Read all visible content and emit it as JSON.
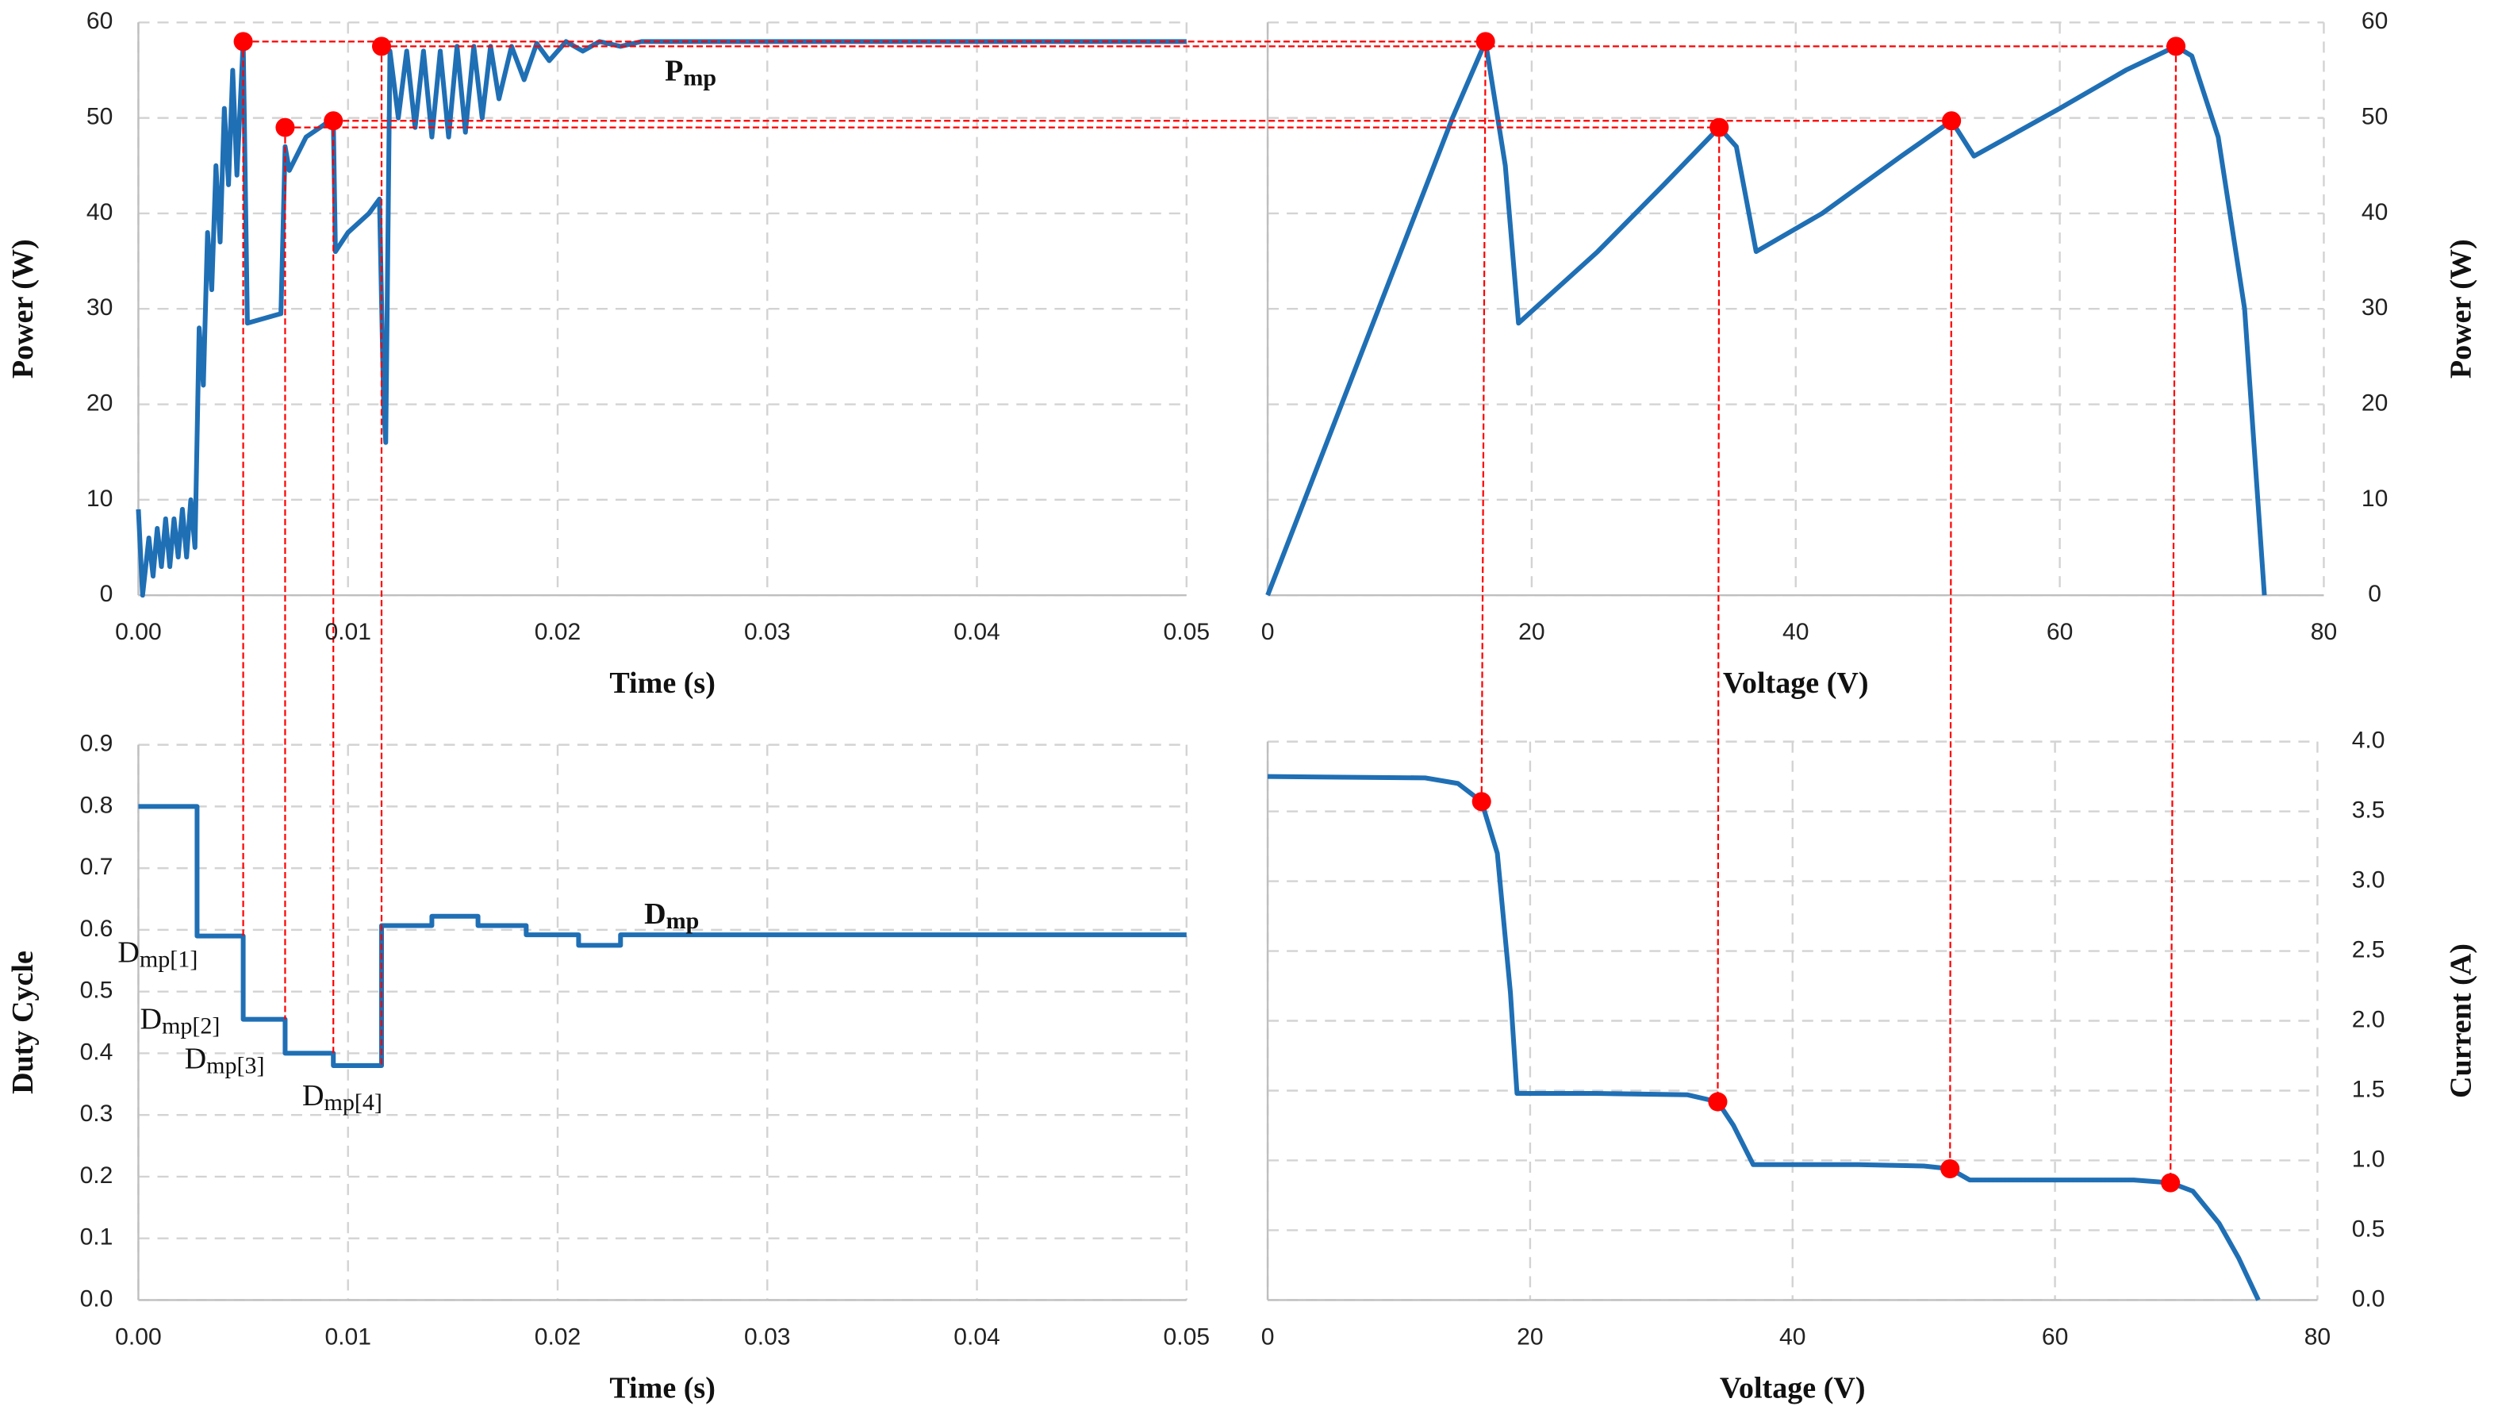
{
  "chart_data": [
    {
      "type": "line",
      "x_label": "Time (s)",
      "y_label": "Power (W)",
      "y_axis_position": "left",
      "grid": true,
      "xlim": [
        0,
        0.05
      ],
      "ylim": [
        0,
        60
      ],
      "xticks": [
        {
          "value": 0,
          "label": "0.00"
        },
        0.01,
        0.02,
        0.03,
        0.04,
        0.05
      ],
      "yticks": [
        0,
        10,
        20,
        30,
        40,
        50,
        60
      ],
      "x": [
        0,
        0.0002,
        0.0005,
        0.0007,
        0.0009,
        0.0011,
        0.0013,
        0.0015,
        0.0017,
        0.0019,
        0.0021,
        0.0023,
        0.0025,
        0.0027,
        0.0029,
        0.0031,
        0.0033,
        0.0035,
        0.0037,
        0.0039,
        0.0041,
        0.0043,
        0.0045,
        0.0047,
        0.005,
        0.0052,
        0.006,
        0.0068,
        0.007,
        0.0072,
        0.008,
        0.009,
        0.0093,
        0.0094,
        0.01,
        0.011,
        0.0115,
        0.0117,
        0.0118,
        0.012,
        0.0124,
        0.0128,
        0.0132,
        0.0136,
        0.014,
        0.0144,
        0.0148,
        0.0152,
        0.0156,
        0.016,
        0.0164,
        0.0168,
        0.0172,
        0.0178,
        0.0184,
        0.019,
        0.0196,
        0.0204,
        0.0212,
        0.022,
        0.023,
        0.024,
        0.05
      ],
      "series": [
        {
          "color": "#1f6fb5",
          "values": [
            9,
            0,
            6,
            2,
            7,
            3,
            8,
            3,
            8,
            4,
            9,
            4,
            10,
            5,
            28,
            22,
            38,
            32,
            45,
            37,
            51,
            43,
            55,
            44,
            58,
            28.5,
            29,
            29.5,
            47,
            44.5,
            48,
            49.5,
            49.7,
            36,
            38,
            40,
            41.5,
            20,
            16,
            57,
            50,
            57,
            49,
            57,
            48,
            57,
            48,
            57.5,
            48.5,
            57.5,
            50,
            57.5,
            52,
            57.5,
            54,
            57.8,
            56,
            58,
            57,
            58,
            57.5,
            58,
            58
          ]
        }
      ],
      "points": {
        "color": "#ff0000",
        "x": [
          0.005,
          0.007,
          0.0093,
          0.0116
        ],
        "values": [
          58,
          49,
          49.7,
          57.5
        ]
      },
      "annotations": [
        {
          "text": "P",
          "sub": "mp"
        }
      ]
    },
    {
      "type": "line",
      "x_label": "Voltage (V)",
      "y_label": "Power (W)",
      "y_axis_position": "right",
      "grid": true,
      "xlim": [
        0,
        80
      ],
      "ylim": [
        0,
        60
      ],
      "xticks": [
        0,
        20,
        40,
        60,
        80
      ],
      "yticks": [
        0,
        10,
        20,
        30,
        40,
        50,
        60
      ],
      "x": [
        0,
        14,
        16.5,
        18,
        19,
        25,
        30,
        34.2,
        35.5,
        37,
        42,
        48,
        51.8,
        53.5,
        60,
        65,
        68.8,
        70,
        72,
        74,
        75.5
      ],
      "series": [
        {
          "color": "#1f6fb5",
          "values": [
            0,
            50,
            58,
            45,
            28.5,
            36,
            43,
            49,
            47,
            36,
            40,
            46,
            49.7,
            46,
            51,
            55,
            57.5,
            56.5,
            48,
            30,
            0
          ]
        }
      ],
      "points": {
        "color": "#ff0000",
        "x": [
          16.5,
          34.2,
          51.8,
          68.8
        ],
        "values": [
          58,
          49,
          49.7,
          57.5
        ]
      }
    },
    {
      "type": "line",
      "x_label": "Time (s)",
      "y_label": "Duty Cycle",
      "y_axis_position": "left",
      "grid": true,
      "xlim": [
        0,
        0.05
      ],
      "ylim": [
        0,
        0.9
      ],
      "xticks": [
        {
          "value": 0,
          "label": "0.00"
        },
        0.01,
        0.02,
        0.03,
        0.04,
        0.05
      ],
      "yticks": [
        {
          "value": 0,
          "label": "0.0"
        },
        0.1,
        0.2,
        0.3,
        0.4,
        0.5,
        0.6,
        0.7,
        0.8,
        0.9
      ],
      "x": [
        0,
        0.0028,
        0.0028,
        0.005,
        0.005,
        0.007,
        0.007,
        0.0093,
        0.0093,
        0.0116,
        0.0116,
        0.014,
        0.014,
        0.0162,
        0.0162,
        0.0185,
        0.0185,
        0.021,
        0.021,
        0.023,
        0.023,
        0.05
      ],
      "series": [
        {
          "color": "#1f6fb5",
          "values": [
            0.8,
            0.8,
            0.59,
            0.59,
            0.455,
            0.455,
            0.4,
            0.4,
            0.38,
            0.38,
            0.607,
            0.607,
            0.622,
            0.622,
            0.607,
            0.607,
            0.592,
            0.592,
            0.575,
            0.575,
            0.592,
            0.592
          ]
        }
      ],
      "annotations": [
        {
          "text": "D",
          "sub": "mp"
        },
        {
          "text": "D",
          "sub": "mp[1]"
        },
        {
          "text": "D",
          "sub": "mp[2]"
        },
        {
          "text": "D",
          "sub": "mp[3]"
        },
        {
          "text": "D",
          "sub": "mp[4]"
        }
      ]
    },
    {
      "type": "line",
      "x_label": "Voltage (V)",
      "y_label": "Current (A)",
      "y_axis_position": "right",
      "grid": true,
      "xlim": [
        0,
        80
      ],
      "ylim": [
        0,
        4
      ],
      "xticks": [
        0,
        20,
        40,
        60,
        80
      ],
      "yticks": [
        {
          "value": 0,
          "label": "0.0"
        },
        0.5,
        {
          "value": 1,
          "label": "1.0"
        },
        1.5,
        {
          "value": 2,
          "label": "2.0"
        },
        2.5,
        {
          "value": 3,
          "label": "3.0"
        },
        3.5,
        {
          "value": 4,
          "label": "4.0"
        }
      ],
      "x": [
        0,
        12,
        14.5,
        16.3,
        17.5,
        18.5,
        19,
        25,
        32,
        34.3,
        35.5,
        37,
        45,
        50,
        52,
        53.5,
        60,
        66,
        68.8,
        70.5,
        72.5,
        74,
        75.5
      ],
      "series": [
        {
          "color": "#1f6fb5",
          "values": [
            3.75,
            3.74,
            3.7,
            3.57,
            3.2,
            2.2,
            1.48,
            1.48,
            1.47,
            1.42,
            1.25,
            0.97,
            0.97,
            0.96,
            0.94,
            0.86,
            0.86,
            0.86,
            0.84,
            0.78,
            0.55,
            0.3,
            0
          ]
        }
      ],
      "points": {
        "color": "#ff0000",
        "x": [
          16.3,
          34.3,
          52,
          68.8
        ],
        "values": [
          3.57,
          1.42,
          0.94,
          0.84
        ]
      }
    }
  ]
}
